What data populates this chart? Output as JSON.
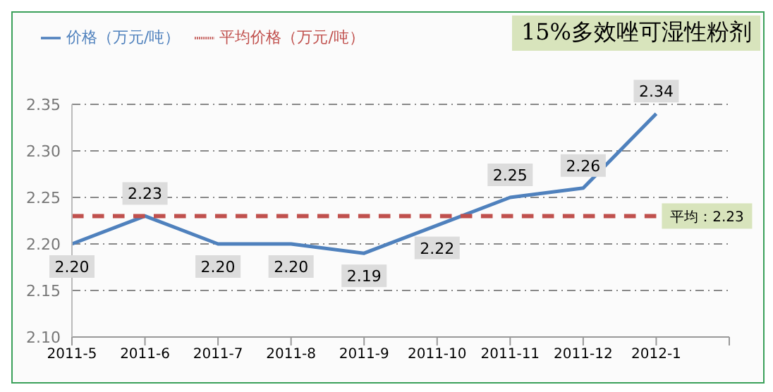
{
  "chart_data": {
    "type": "line",
    "title": "15%多效唑可湿性粉剂",
    "categories": [
      "2011-5",
      "2011-6",
      "2011-7",
      "2011-8",
      "2011-9",
      "2011-10",
      "2011-11",
      "2011-12",
      "2012-1",
      null
    ],
    "series": [
      {
        "name": "价格（万元/吨）",
        "color": "#4f81bd",
        "values": [
          2.2,
          2.23,
          2.2,
          2.2,
          2.19,
          2.22,
          2.25,
          2.26,
          2.34,
          null
        ],
        "line_style": "solid",
        "value_labels": [
          "2.20",
          "2.23",
          "2.20",
          "2.20",
          "2.19",
          "2.22",
          "2.25",
          "2.26",
          "2.34",
          null
        ]
      },
      {
        "name": "平均价格（万元/吨）",
        "color": "#c0504d",
        "values": [
          2.23,
          2.23,
          2.23,
          2.23,
          2.23,
          2.23,
          2.23,
          2.23,
          2.23,
          null
        ],
        "line_style": "dashed"
      }
    ],
    "annotations": [
      {
        "text": "平均：2.23",
        "x": "2012-1",
        "y": 2.23
      }
    ],
    "ylim": [
      2.1,
      2.35
    ],
    "yticks": [
      {
        "value": 2.1,
        "label": "2.10"
      },
      {
        "value": 2.15,
        "label": "2.15"
      },
      {
        "value": 2.2,
        "label": "2.20"
      },
      {
        "value": 2.25,
        "label": "2.25"
      },
      {
        "value": 2.3,
        "label": "2.30"
      },
      {
        "value": 2.35,
        "label": "2.35"
      }
    ],
    "grid": "y",
    "legend": "top left",
    "marker": "none"
  }
}
